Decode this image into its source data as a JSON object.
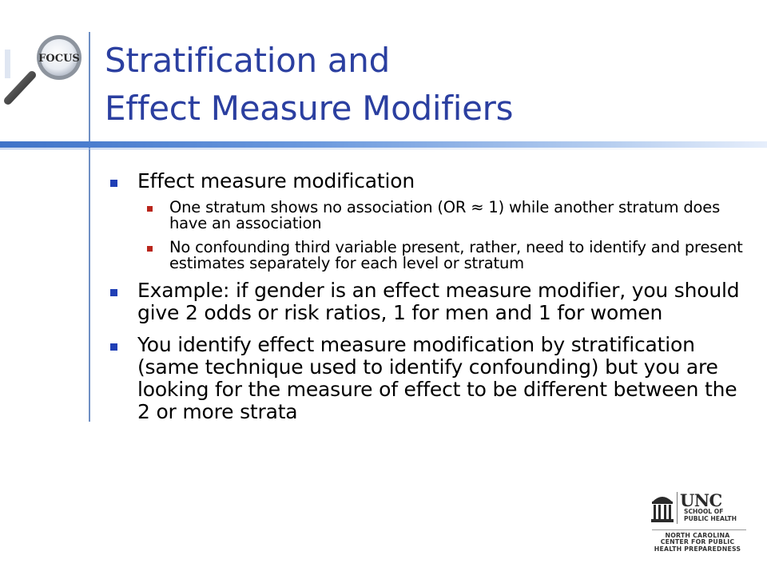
{
  "slide": {
    "title_line1": "Stratification and",
    "title_line2": "Effect Measure Modifiers"
  },
  "bullets": [
    {
      "text": "Effect measure modification",
      "sub": [
        "One stratum shows no association (OR ≈ 1) while another stratum does have an association",
        "No confounding third variable present, rather, need to identify and present estimates separately for each level or stratum"
      ]
    },
    {
      "text": "Example: if gender is an effect measure modifier, you should give 2 odds or risk ratios, 1 for men and 1 for women"
    },
    {
      "text": "You identify effect measure modification by stratification (same technique used to identify confounding) but you are looking for the measure of effect to be different between the 2 or more strata"
    }
  ],
  "logos": {
    "focus_text": "FOCUS",
    "unc_text": "UNC",
    "unc_school_line1": "SCHOOL OF",
    "unc_school_line2": "PUBLIC HEALTH",
    "center_line1": "NORTH CAROLINA",
    "center_line2": "CENTER FOR PUBLIC",
    "center_line3": "HEALTH PREPAREDNESS"
  },
  "colors": {
    "title": "#2b3fa0",
    "bullet_primary": "#1f3fb5",
    "bullet_secondary": "#b9261c",
    "accent_bar": "#3f73c8"
  }
}
